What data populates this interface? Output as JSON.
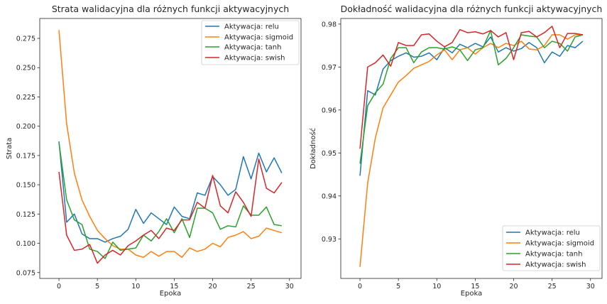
{
  "colors": {
    "relu": "#1f77b4",
    "sigmoid": "#ff7f0e",
    "tanh": "#2ca02c",
    "swish": "#d62728"
  },
  "chart_data": [
    {
      "type": "line",
      "title": "Strata walidacyjna dla różnych funkcji aktywacyjnych",
      "xlabel": "Epoka",
      "ylabel": "Strata",
      "xlim": [
        -2.5,
        31.5
      ],
      "ylim": [
        0.07,
        0.292
      ],
      "xticks": [
        0,
        5,
        10,
        15,
        20,
        25,
        30
      ],
      "yticks": [
        0.075,
        0.1,
        0.125,
        0.15,
        0.175,
        0.2,
        0.225,
        0.25,
        0.275
      ],
      "ytick_labels": [
        "0.075",
        "0.100",
        "0.125",
        "0.150",
        "0.175",
        "0.200",
        "0.225",
        "0.250",
        "0.275"
      ],
      "grid": false,
      "legend_position": "top-right",
      "x": [
        0,
        1,
        2,
        3,
        4,
        5,
        6,
        7,
        8,
        9,
        10,
        11,
        12,
        13,
        14,
        15,
        16,
        17,
        18,
        19,
        20,
        21,
        22,
        23,
        24,
        25,
        26,
        27,
        28,
        29
      ],
      "series": [
        {
          "name": "Aktywacja: relu",
          "color_key": "relu",
          "values": [
            0.187,
            0.118,
            0.125,
            0.108,
            0.104,
            0.104,
            0.101,
            0.104,
            0.106,
            0.112,
            0.129,
            0.117,
            0.126,
            0.121,
            0.116,
            0.131,
            0.123,
            0.121,
            0.143,
            0.141,
            0.157,
            0.15,
            0.141,
            0.146,
            0.174,
            0.155,
            0.177,
            0.161,
            0.173,
            0.16
          ]
        },
        {
          "name": "Aktywacja: sigmoid",
          "color_key": "sigmoid",
          "values": [
            0.282,
            0.202,
            0.16,
            0.137,
            0.123,
            0.111,
            0.104,
            0.098,
            0.095,
            0.095,
            0.09,
            0.088,
            0.093,
            0.089,
            0.093,
            0.093,
            0.088,
            0.096,
            0.093,
            0.095,
            0.1,
            0.097,
            0.105,
            0.107,
            0.11,
            0.104,
            0.106,
            0.113,
            0.111,
            0.109
          ]
        },
        {
          "name": "Aktywacja: tanh",
          "color_key": "tanh",
          "values": [
            0.186,
            0.137,
            0.12,
            0.116,
            0.095,
            0.093,
            0.087,
            0.101,
            0.094,
            0.095,
            0.096,
            0.107,
            0.102,
            0.11,
            0.121,
            0.109,
            0.121,
            0.105,
            0.13,
            0.13,
            0.126,
            0.112,
            0.115,
            0.114,
            0.132,
            0.124,
            0.124,
            0.131,
            0.116,
            0.115
          ]
        },
        {
          "name": "Aktywacja: swish",
          "color_key": "swish",
          "values": [
            0.161,
            0.107,
            0.094,
            0.095,
            0.099,
            0.083,
            0.09,
            0.094,
            0.09,
            0.098,
            0.102,
            0.107,
            0.111,
            0.104,
            0.113,
            0.111,
            0.12,
            0.12,
            0.135,
            0.13,
            0.158,
            0.132,
            0.126,
            0.144,
            0.135,
            0.123,
            0.172,
            0.147,
            0.143,
            0.152
          ]
        }
      ]
    },
    {
      "type": "line",
      "title": "Dokładność walidacyjna dla różnych funkcji aktywacyjnych",
      "xlabel": "Epoka",
      "ylabel": "Dokładność",
      "xlim": [
        -2.5,
        31.5
      ],
      "ylim": [
        0.9208,
        0.9813
      ],
      "xticks": [
        0,
        5,
        10,
        15,
        20,
        25,
        30
      ],
      "yticks": [
        0.93,
        0.94,
        0.95,
        0.96,
        0.97,
        0.98
      ],
      "ytick_labels": [
        "0.93",
        "0.94",
        "0.95",
        "0.96",
        "0.97",
        "0.98"
      ],
      "grid": false,
      "legend_position": "bottom-right",
      "x": [
        0,
        1,
        2,
        3,
        4,
        5,
        6,
        7,
        8,
        9,
        10,
        11,
        12,
        13,
        14,
        15,
        16,
        17,
        18,
        19,
        20,
        21,
        22,
        23,
        24,
        25,
        26,
        27,
        28,
        29
      ],
      "series": [
        {
          "name": "Aktywacja: relu",
          "color_key": "relu",
          "values": [
            0.9447,
            0.9645,
            0.9635,
            0.9695,
            0.9715,
            0.9725,
            0.9733,
            0.9723,
            0.9725,
            0.9733,
            0.9717,
            0.9745,
            0.9733,
            0.9753,
            0.9745,
            0.9755,
            0.9747,
            0.977,
            0.9735,
            0.9745,
            0.9737,
            0.9743,
            0.9757,
            0.9745,
            0.971,
            0.9735,
            0.9725,
            0.975,
            0.9745,
            0.976
          ]
        },
        {
          "name": "Aktywacja: sigmoid",
          "color_key": "sigmoid",
          "values": [
            0.9235,
            0.943,
            0.9535,
            0.9605,
            0.9635,
            0.9665,
            0.968,
            0.9697,
            0.9705,
            0.9713,
            0.9728,
            0.974,
            0.9717,
            0.974,
            0.9745,
            0.973,
            0.9745,
            0.9755,
            0.9745,
            0.9755,
            0.975,
            0.976,
            0.9742,
            0.974,
            0.975,
            0.9775,
            0.9775,
            0.9765,
            0.9775,
            0.9775
          ]
        },
        {
          "name": "Aktywacja: tanh",
          "color_key": "tanh",
          "values": [
            0.9475,
            0.961,
            0.964,
            0.966,
            0.972,
            0.9745,
            0.9745,
            0.971,
            0.9735,
            0.9745,
            0.9745,
            0.9742,
            0.9747,
            0.974,
            0.9715,
            0.974,
            0.9745,
            0.9785,
            0.9705,
            0.972,
            0.9745,
            0.9775,
            0.9772,
            0.977,
            0.9745,
            0.976,
            0.9755,
            0.9737,
            0.977,
            0.9775
          ]
        },
        {
          "name": "Aktywacja: swish",
          "color_key": "swish",
          "values": [
            0.951,
            0.97,
            0.971,
            0.9728,
            0.9702,
            0.9757,
            0.975,
            0.975,
            0.9775,
            0.9777,
            0.976,
            0.9747,
            0.9757,
            0.9787,
            0.978,
            0.9782,
            0.9777,
            0.9785,
            0.977,
            0.978,
            0.9717,
            0.978,
            0.9783,
            0.977,
            0.978,
            0.9795,
            0.9745,
            0.9778,
            0.9778,
            0.9775
          ]
        }
      ]
    }
  ]
}
